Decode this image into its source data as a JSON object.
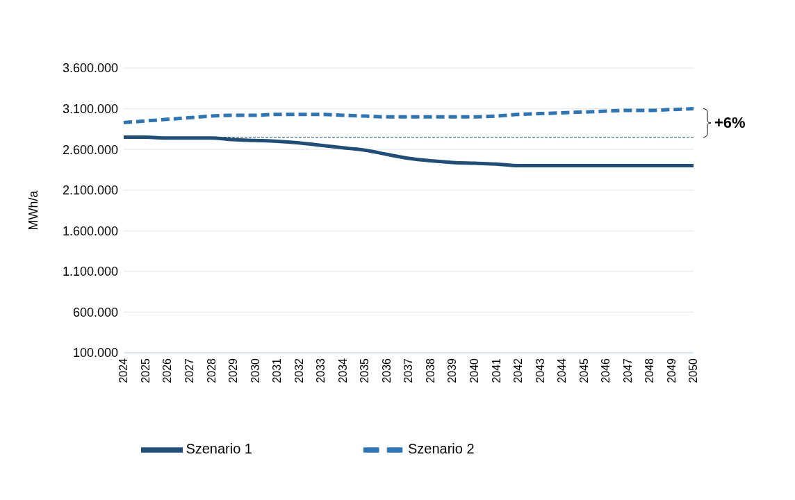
{
  "chart_data": {
    "type": "line",
    "ylabel": "MWh/a",
    "categories": [
      "2024",
      "2025",
      "2026",
      "2027",
      "2028",
      "2029",
      "2030",
      "2031",
      "2032",
      "2033",
      "2034",
      "2035",
      "2036",
      "2037",
      "2038",
      "2039",
      "2040",
      "2041",
      "2042",
      "2043",
      "2044",
      "2045",
      "2046",
      "2047",
      "2048",
      "2049",
      "2050"
    ],
    "series": [
      {
        "name": "Szenario 1",
        "color": "#1f4e79",
        "line_style": "solid",
        "values": [
          2750000,
          2750000,
          2740000,
          2740000,
          2740000,
          2720000,
          2710000,
          2700000,
          2680000,
          2650000,
          2620000,
          2590000,
          2540000,
          2490000,
          2460000,
          2440000,
          2430000,
          2420000,
          2400000,
          2400000,
          2400000,
          2400000,
          2400000,
          2400000,
          2400000,
          2400000,
          2400000
        ]
      },
      {
        "name": "Szenario 2",
        "color": "#2e75b6",
        "line_style": "dashed",
        "values": [
          2930000,
          2950000,
          2970000,
          2990000,
          3010000,
          3020000,
          3020000,
          3030000,
          3030000,
          3030000,
          3020000,
          3010000,
          3000000,
          3000000,
          3000000,
          3000000,
          3000000,
          3010000,
          3030000,
          3040000,
          3050000,
          3060000,
          3070000,
          3080000,
          3080000,
          3090000,
          3100000
        ]
      }
    ],
    "ylim": [
      100000,
      3600000
    ],
    "yticks": [
      {
        "value": 100000,
        "label": "100.000"
      },
      {
        "value": 600000,
        "label": "600.000"
      },
      {
        "value": 1100000,
        "label": "1.100.000"
      },
      {
        "value": 1600000,
        "label": "1.600.000"
      },
      {
        "value": 2100000,
        "label": "2.100.000"
      },
      {
        "value": 2600000,
        "label": "2.600.000"
      },
      {
        "value": 3100000,
        "label": "3.100.000"
      },
      {
        "value": 3600000,
        "label": "3.600.000"
      }
    ],
    "grid": "y",
    "legend": "bottom",
    "marker": "none",
    "ref_lines": [
      {
        "axis": "y",
        "value": 2750000,
        "color": "#1f4e79",
        "line_style": "dashed"
      }
    ],
    "annotations": [
      "+6%"
    ]
  }
}
